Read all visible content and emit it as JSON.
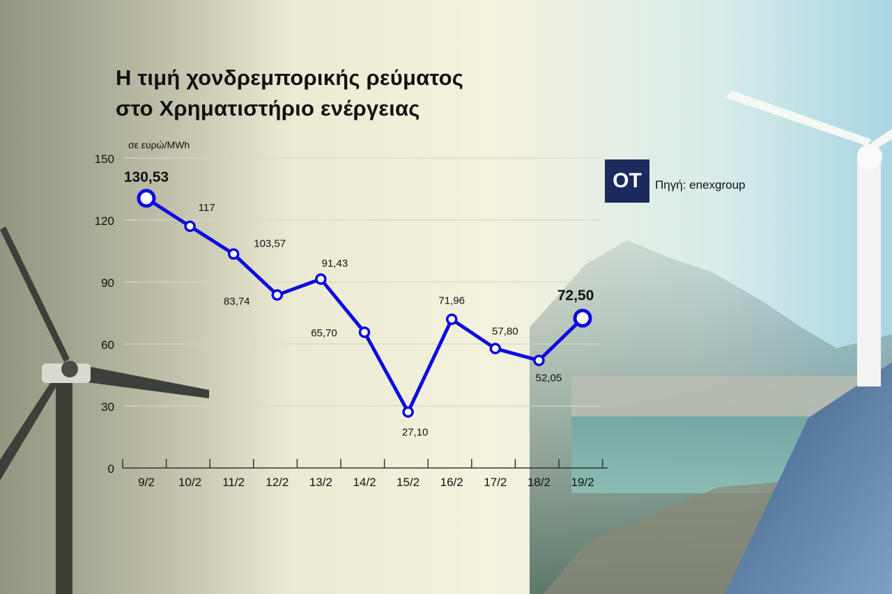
{
  "title_line1": "Η τιμή χονδρεμπορικής ρεύματος",
  "title_line2": "στο Χρηματιστήριο ενέργειας",
  "unit_label": "σε ευρώ/MWh",
  "logo_text": "ΟΤ",
  "source_text": "Πηγή: enexgroup",
  "colors": {
    "line": "#0a0ae0",
    "grid": "#d8d6c8",
    "axis": "#333333"
  },
  "chart_data": {
    "type": "line",
    "categories": [
      "9/2",
      "10/2",
      "11/2",
      "12/2",
      "13/2",
      "14/2",
      "15/2",
      "16/2",
      "17/2",
      "18/2",
      "19/2"
    ],
    "values": [
      130.53,
      117,
      103.57,
      83.74,
      91.43,
      65.7,
      27.1,
      71.96,
      57.8,
      52.05,
      72.5
    ],
    "data_labels": [
      "130,53",
      "117",
      "103,57",
      "83,74",
      "91,43",
      "65,70",
      "27,10",
      "71,96",
      "57,80",
      "52,05",
      "72,50"
    ],
    "ylim": [
      0,
      150
    ],
    "yticks": [
      0,
      30,
      60,
      90,
      120,
      150
    ],
    "grid": true,
    "title": "Η τιμή χονδρεμπορικής ρεύματος στο Χρηματιστήριο ενέργειας",
    "ylabel": "σε ευρώ/MWh",
    "xlabel": ""
  }
}
